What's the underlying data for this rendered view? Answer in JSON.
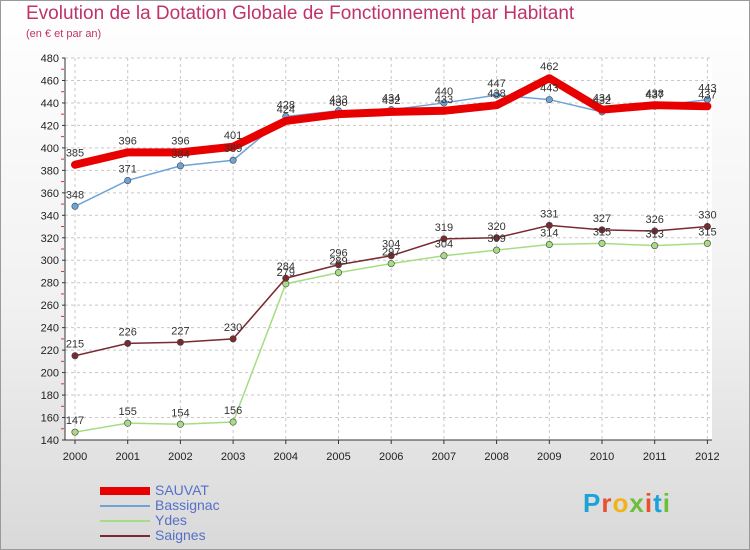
{
  "title": "Evolution de la Dotation Globale de Fonctionnement par Habitant",
  "subtitle": "(en € et par an)",
  "brand": {
    "text": "Proxiti",
    "letters": [
      "P",
      "r",
      "o",
      "x",
      "i",
      "t",
      "i"
    ],
    "colors": [
      "#1aa3d9",
      "#e8502f",
      "#f3b318",
      "#6cbf3a",
      "#e8502f",
      "#1aa3d9",
      "#6cbf3a"
    ]
  },
  "chart_data": {
    "type": "line",
    "title": "Evolution de la Dotation Globale de Fonctionnement par Habitant",
    "subtitle": "(en € et par an)",
    "x": [
      "2000",
      "2001",
      "2002",
      "2003",
      "2004",
      "2005",
      "2006",
      "2007",
      "2008",
      "2009",
      "2010",
      "2011",
      "2012"
    ],
    "ylim": [
      140,
      480
    ],
    "yticks": [
      140,
      160,
      180,
      200,
      220,
      240,
      260,
      280,
      300,
      320,
      340,
      360,
      380,
      400,
      420,
      440,
      460,
      480
    ],
    "grid": true,
    "legend_position": "bottom-left",
    "series": [
      {
        "name": "SAUVAT",
        "color": "#e80000",
        "width": 8,
        "labelled": true,
        "values": [
          385,
          396,
          396,
          401,
          424,
          430,
          432,
          433,
          438,
          462,
          434,
          438,
          437
        ]
      },
      {
        "name": "Bassignac",
        "color": "#6ea3d8",
        "width": 1.5,
        "labelled": true,
        "values": [
          348,
          371,
          384,
          389,
          428,
          433,
          434,
          440,
          447,
          443,
          432,
          437,
          443
        ]
      },
      {
        "name": "Ydes",
        "color": "#a6dd84",
        "width": 1.5,
        "labelled": true,
        "values": [
          147,
          155,
          154,
          156,
          279,
          289,
          297,
          304,
          309,
          314,
          315,
          313,
          315
        ]
      },
      {
        "name": "Saignes",
        "color": "#7a2a30",
        "width": 1.5,
        "labelled": true,
        "values": [
          215,
          226,
          227,
          230,
          284,
          296,
          304,
          319,
          320,
          331,
          327,
          326,
          330
        ]
      }
    ]
  }
}
